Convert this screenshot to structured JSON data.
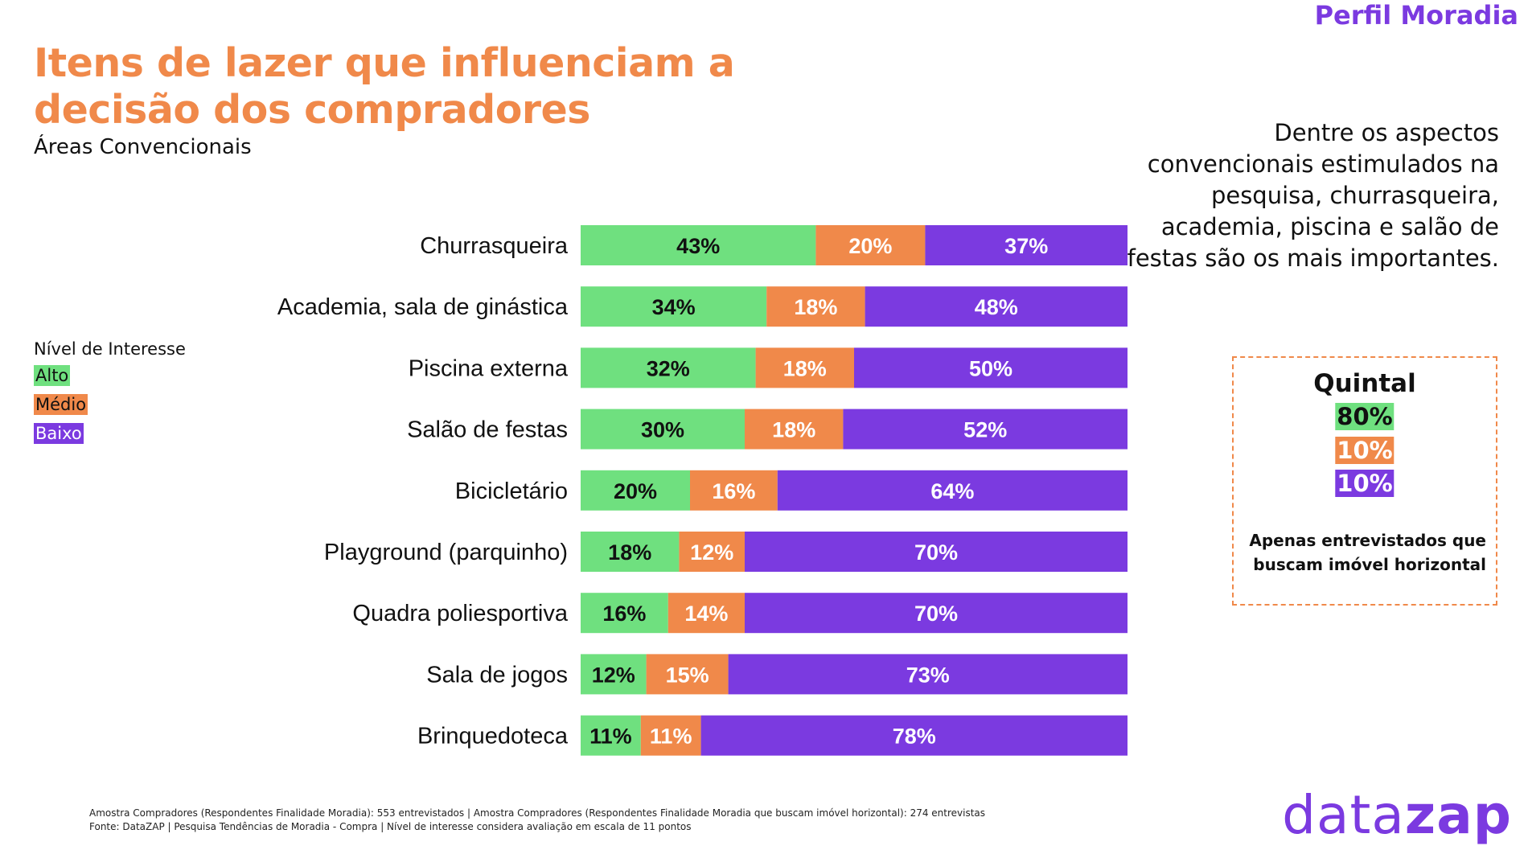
{
  "header": {
    "brand": "Perfil Moradia",
    "title_line1": "Itens de lazer que influenciam a",
    "title_line2": "decisão dos compradores",
    "subtitle": "Áreas Convencionais"
  },
  "legend": {
    "title": "Nível de Interesse",
    "items": [
      {
        "label": "Alto",
        "color": "#6FE07F"
      },
      {
        "label": "Médio",
        "color": "#F0894A"
      },
      {
        "label": "Baixo",
        "color": "#7B3AE0"
      }
    ]
  },
  "note": "Dentre os aspectos convencionais estimulados na pesquisa, churrasqueira, academia, piscina e salão de festas são os mais importantes.",
  "quintal": {
    "title": "Quintal",
    "alto": "80%",
    "medio": "10%",
    "baixo": "10%",
    "note": "Apenas entrevistados que buscam imóvel horizontal"
  },
  "footer": {
    "line1": "Amostra Compradores (Respondentes Finalidade Moradia): 553 entrevistados | Amostra Compradores (Respondentes Finalidade Moradia que buscam imóvel horizontal): 274 entrevistas",
    "line2": "Fonte: DataZAP | Pesquisa Tendências de Moradia - Compra | Nível de interesse considera avaliação em escala de 11 pontos"
  },
  "logo": {
    "part1": "data",
    "part2": "zap"
  },
  "chart_data": {
    "type": "bar",
    "orientation": "horizontal",
    "stacked": true,
    "categories": [
      "Churrasqueira",
      "Academia, sala de ginástica",
      "Piscina externa",
      "Salão de festas",
      "Bicicletário",
      "Playground (parquinho)",
      "Quadra poliesportiva",
      "Sala de jogos",
      "Brinquedoteca"
    ],
    "series": [
      {
        "name": "Alto",
        "color": "#6FE07F",
        "values": [
          43,
          34,
          32,
          30,
          20,
          18,
          16,
          12,
          11
        ]
      },
      {
        "name": "Médio",
        "color": "#F0894A",
        "values": [
          20,
          18,
          18,
          18,
          16,
          12,
          14,
          15,
          11
        ]
      },
      {
        "name": "Baixo",
        "color": "#7B3AE0",
        "values": [
          37,
          48,
          50,
          52,
          64,
          70,
          70,
          73,
          78
        ]
      }
    ],
    "xlim": [
      0,
      100
    ],
    "value_suffix": "%"
  }
}
